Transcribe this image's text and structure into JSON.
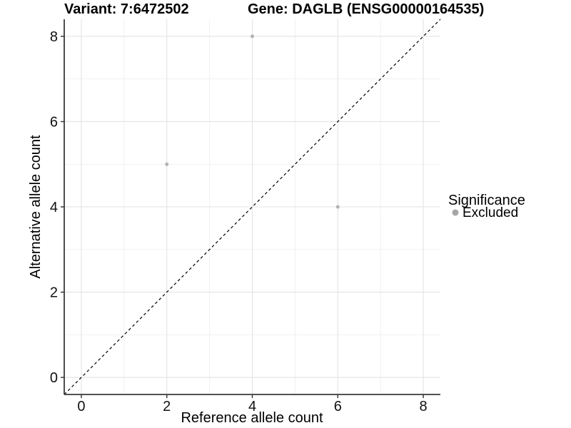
{
  "chart_data": {
    "type": "scatter",
    "title_left": "Variant: 7:6472502",
    "title_right": "Gene: DAGLB (ENSG00000164535)",
    "xlabel": "Reference allele count",
    "ylabel": "Alternative allele count",
    "xlim": [
      -0.4,
      8.4
    ],
    "ylim": [
      -0.4,
      8.4
    ],
    "x_major_ticks": [
      0,
      2,
      4,
      6,
      8
    ],
    "y_major_ticks": [
      0,
      2,
      4,
      6,
      8
    ],
    "x_minor_ticks": [
      1,
      3,
      5,
      7
    ],
    "y_minor_ticks": [
      1,
      3,
      5,
      7
    ],
    "grid": true,
    "identity_line": {
      "style": "dashed",
      "slope": 1,
      "intercept": 0,
      "color": "#000000"
    },
    "series": [
      {
        "name": "Excluded",
        "color": "#b3b3b3",
        "points": [
          {
            "x": 2,
            "y": 5
          },
          {
            "x": 4,
            "y": 8
          },
          {
            "x": 6,
            "y": 4
          }
        ]
      }
    ],
    "legend": {
      "title": "Significance",
      "position": "right",
      "items": [
        {
          "label": "Excluded",
          "color": "#a6a6a6"
        }
      ]
    }
  },
  "style": {
    "background": "#ffffff",
    "grid_major_color": "#e3e3e3",
    "grid_minor_color": "#efefef",
    "axis_line_color": "#3a3a3a",
    "tick_color": "#3a3a3a",
    "text_color": "#000000",
    "point_radius": 2.5,
    "legend_key_radius": 4.5
  }
}
